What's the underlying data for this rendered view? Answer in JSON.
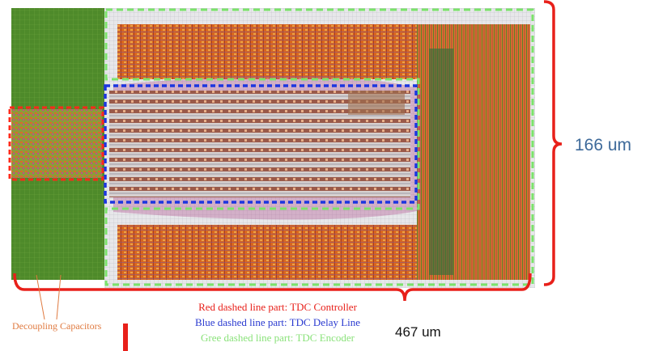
{
  "dimensions": {
    "height": "166 um",
    "width": "467 um"
  },
  "decoupling_label": "Decoupling Capacitors",
  "legend": [
    "Red dashed line part: TDC Controller",
    "Blue dashed line part: TDC Delay Line",
    "Gree dashed line part: TDC Encoder"
  ]
}
